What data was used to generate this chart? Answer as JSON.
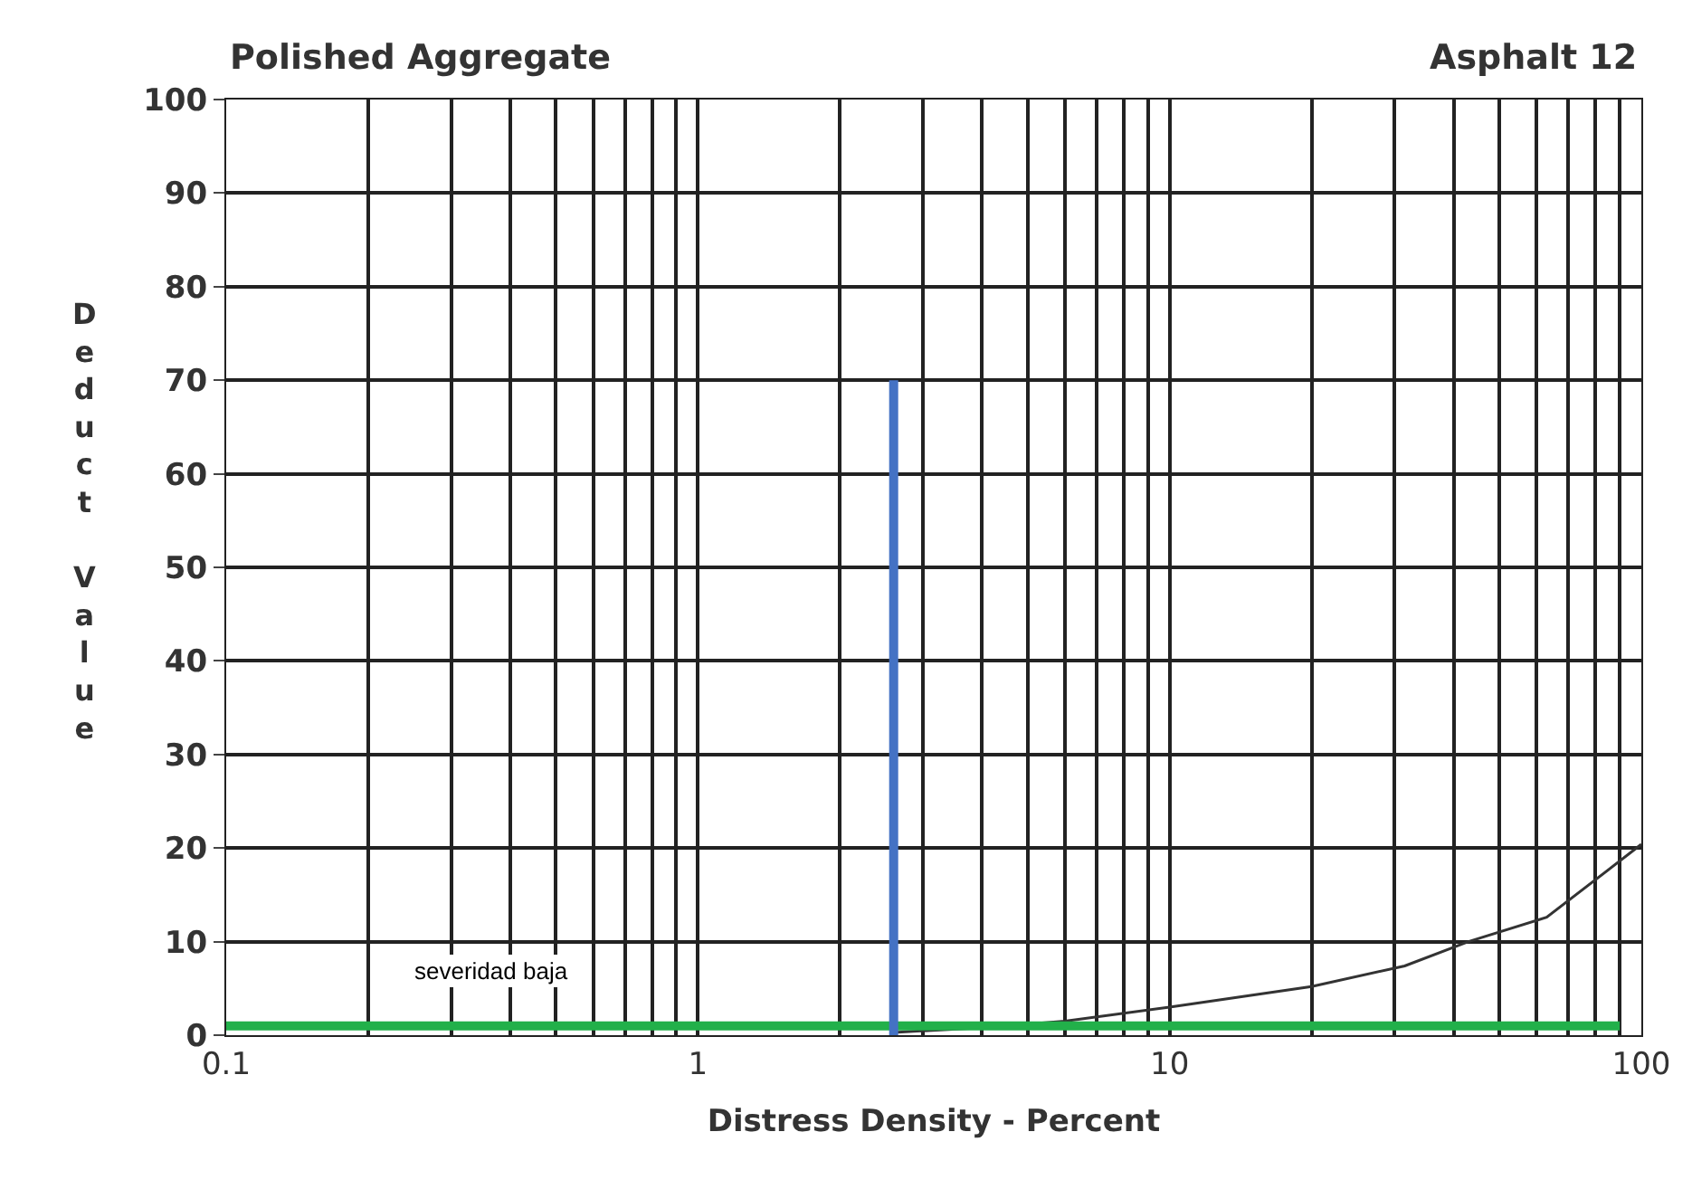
{
  "chart_data": {
    "type": "line",
    "title": "Polished Aggregate",
    "subtitle": "Asphalt 12",
    "xlabel": "Distress Density - Percent",
    "ylabel": "Deduct Value",
    "log": "x",
    "xlim": [
      0.1,
      100
    ],
    "xticks": [
      {
        "value": 0.1,
        "label": "0.1"
      },
      1,
      10,
      100
    ],
    "ylim": [
      0,
      100
    ],
    "yticks": [
      0,
      10,
      20,
      30,
      40,
      50,
      60,
      70,
      80,
      90,
      100
    ],
    "grid": true,
    "marker": "none",
    "line_style": "solid",
    "series": [
      {
        "color": "#333333",
        "x": [
          2.6,
          4.0,
          6.0,
          10,
          20,
          31.5,
          43,
          63,
          100
        ],
        "values": [
          0.3,
          0.8,
          1.5,
          3,
          5.2,
          7.4,
          10,
          12.6,
          20.4
        ]
      },
      {
        "color": "#22b04a",
        "x": [
          0.1,
          90
        ],
        "values": [
          1,
          1
        ]
      },
      {
        "color": "#4472c4",
        "x": [
          2.6,
          2.6
        ],
        "values": [
          0,
          70
        ]
      }
    ],
    "annotations": [
      "severidad baja"
    ]
  }
}
